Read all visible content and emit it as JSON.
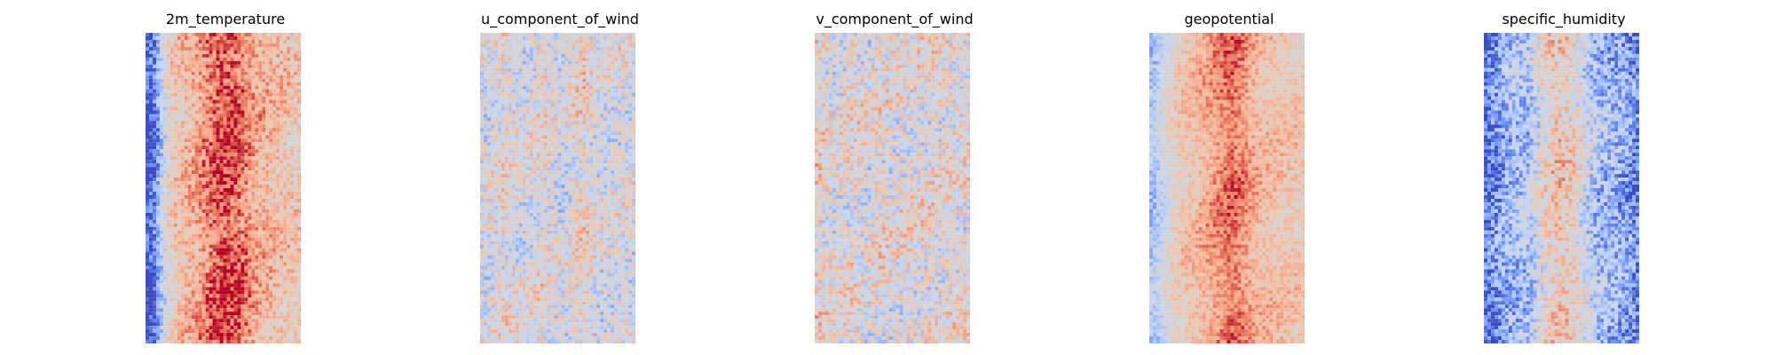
{
  "colormap": {
    "name": "coolwarm",
    "stops": [
      "#3b4cc0",
      "#6688ee",
      "#9abbff",
      "#c9d7f0",
      "#d3d3d3",
      "#edc7b0",
      "#f7a889",
      "#e26952",
      "#b40426"
    ]
  },
  "chart_data": [
    {
      "type": "heatmap",
      "title": "2m_temperature",
      "colormap": "coolwarm",
      "axes_visible": false,
      "grid": false,
      "values_normalized": true,
      "zonal_profile": [
        0.02,
        0.1,
        0.35,
        0.55,
        0.62,
        0.66,
        0.7,
        0.74,
        0.8,
        0.86,
        0.9,
        0.92,
        0.9,
        0.86,
        0.8,
        0.74,
        0.7,
        0.68,
        0.66,
        0.64,
        0.62,
        0.6
      ],
      "noise": 0.16
    },
    {
      "type": "heatmap",
      "title": "u_component_of_wind",
      "colormap": "coolwarm",
      "axes_visible": false,
      "grid": false,
      "values_normalized": true,
      "zonal_profile": [
        0.45,
        0.46,
        0.48,
        0.52,
        0.5,
        0.47,
        0.45,
        0.48,
        0.53,
        0.5,
        0.46,
        0.44,
        0.47,
        0.52,
        0.55,
        0.5,
        0.45,
        0.44,
        0.46,
        0.48,
        0.47,
        0.46
      ],
      "noise": 0.22
    },
    {
      "type": "heatmap",
      "title": "v_component_of_wind",
      "colormap": "coolwarm",
      "axes_visible": false,
      "grid": false,
      "values_normalized": true,
      "zonal_profile": [
        0.55,
        0.52,
        0.5,
        0.48,
        0.5,
        0.53,
        0.5,
        0.47,
        0.5,
        0.52,
        0.5,
        0.48,
        0.5,
        0.5,
        0.5,
        0.5,
        0.5,
        0.51,
        0.5,
        0.5,
        0.5,
        0.5
      ],
      "noise": 0.24
    },
    {
      "type": "heatmap",
      "title": "geopotential",
      "colormap": "coolwarm",
      "axes_visible": false,
      "grid": false,
      "values_normalized": true,
      "zonal_profile": [
        0.3,
        0.36,
        0.45,
        0.55,
        0.6,
        0.63,
        0.66,
        0.7,
        0.74,
        0.78,
        0.82,
        0.86,
        0.84,
        0.78,
        0.72,
        0.68,
        0.66,
        0.65,
        0.64,
        0.63,
        0.62,
        0.6
      ],
      "noise": 0.12
    },
    {
      "type": "heatmap",
      "title": "specific_humidity",
      "colormap": "coolwarm",
      "axes_visible": false,
      "grid": false,
      "values_normalized": true,
      "zonal_profile": [
        0.08,
        0.12,
        0.2,
        0.26,
        0.28,
        0.3,
        0.33,
        0.42,
        0.52,
        0.58,
        0.62,
        0.6,
        0.56,
        0.48,
        0.4,
        0.33,
        0.28,
        0.26,
        0.24,
        0.22,
        0.18,
        0.12
      ],
      "noise": 0.2
    }
  ]
}
